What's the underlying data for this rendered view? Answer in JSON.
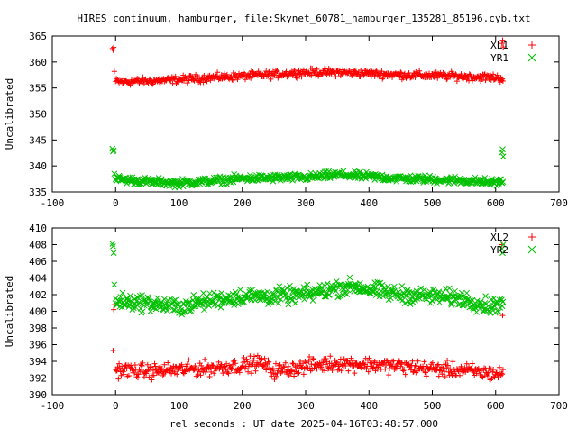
{
  "figure": {
    "title": "HIRES continuum, hamburger, file:Skynet_60781_hamburger_135281_85196.cyb.txt",
    "xlabel": "rel seconds : UT date 2025-04-16T03:48:57.000"
  },
  "colors": {
    "red": "#ff0000",
    "green": "#00c000",
    "frame": "#000000"
  },
  "chart_data": [
    {
      "type": "scatter",
      "panel": "top",
      "ylabel": "Uncalibrated",
      "xlim": [
        -100,
        700
      ],
      "ylim": [
        335,
        365
      ],
      "xticks": [
        -100,
        0,
        100,
        200,
        300,
        400,
        500,
        600,
        700
      ],
      "yticks": [
        335,
        340,
        345,
        350,
        355,
        360,
        365
      ],
      "legend": "top-right",
      "series": [
        {
          "name": "XL1",
          "color": "#ff0000",
          "marker": "plus",
          "outliers": [
            [
              -5,
              362.6
            ],
            [
              -4,
              362.3
            ],
            [
              -3,
              362.8
            ],
            [
              -2,
              358.2
            ],
            [
              610,
              363.6
            ],
            [
              611,
              364.2
            ],
            [
              612,
              362.9
            ]
          ],
          "trend": [
            [
              0,
              356.2
            ],
            [
              50,
              356.3
            ],
            [
              100,
              356.6
            ],
            [
              150,
              357.0
            ],
            [
              200,
              357.3
            ],
            [
              250,
              357.6
            ],
            [
              300,
              358.0
            ],
            [
              350,
              358.0
            ],
            [
              400,
              357.8
            ],
            [
              450,
              357.5
            ],
            [
              500,
              357.4
            ],
            [
              550,
              357.2
            ],
            [
              600,
              357.0
            ],
            [
              612,
              356.8
            ]
          ],
          "spread": 0.9
        },
        {
          "name": "YR1",
          "color": "#00c000",
          "marker": "cross",
          "outliers": [
            [
              -5,
              343.3
            ],
            [
              -4,
              342.8
            ],
            [
              -3,
              343.0
            ],
            [
              -2,
              338.5
            ],
            [
              610,
              342.6
            ],
            [
              611,
              343.2
            ],
            [
              612,
              341.8
            ]
          ],
          "trend": [
            [
              0,
              337.5
            ],
            [
              50,
              337.0
            ],
            [
              100,
              336.7
            ],
            [
              150,
              337.1
            ],
            [
              200,
              337.6
            ],
            [
              250,
              337.7
            ],
            [
              300,
              337.8
            ],
            [
              350,
              338.3
            ],
            [
              400,
              338.0
            ],
            [
              450,
              337.6
            ],
            [
              500,
              337.4
            ],
            [
              550,
              337.2
            ],
            [
              600,
              336.8
            ],
            [
              612,
              337.0
            ]
          ],
          "spread": 0.9
        }
      ]
    },
    {
      "type": "scatter",
      "panel": "bottom",
      "ylabel": "Uncalibrated",
      "xlim": [
        -100,
        700
      ],
      "ylim": [
        390,
        410
      ],
      "xticks": [
        -100,
        0,
        100,
        200,
        300,
        400,
        500,
        600,
        700
      ],
      "yticks": [
        390,
        392,
        394,
        396,
        398,
        400,
        402,
        404,
        406,
        408,
        410
      ],
      "legend": "top-right",
      "series": [
        {
          "name": "XL2",
          "color": "#ff0000",
          "marker": "plus",
          "outliers": [
            [
              -4,
              395.3
            ],
            [
              -3,
              400.2
            ],
            [
              -2,
              400.8
            ],
            [
              611,
              399.5
            ],
            [
              610,
              408.0
            ]
          ],
          "trend": [
            [
              0,
              393.0
            ],
            [
              50,
              392.8
            ],
            [
              100,
              393.0
            ],
            [
              150,
              393.2
            ],
            [
              200,
              393.5
            ],
            [
              230,
              393.9
            ],
            [
              250,
              392.8
            ],
            [
              300,
              393.4
            ],
            [
              350,
              393.8
            ],
            [
              400,
              393.6
            ],
            [
              450,
              393.4
            ],
            [
              500,
              393.1
            ],
            [
              550,
              392.9
            ],
            [
              600,
              392.5
            ],
            [
              612,
              392.5
            ]
          ],
          "spread": 1.1
        },
        {
          "name": "YR2",
          "color": "#00c000",
          "marker": "cross",
          "outliers": [
            [
              -5,
              408.1
            ],
            [
              -4,
              407.8
            ],
            [
              -3,
              407.0
            ],
            [
              -2,
              403.2
            ],
            [
              610,
              407.5
            ],
            [
              611,
              407.0
            ],
            [
              612,
              408.0
            ]
          ],
          "trend": [
            [
              0,
              401.2
            ],
            [
              50,
              401.0
            ],
            [
              100,
              400.5
            ],
            [
              150,
              401.3
            ],
            [
              200,
              401.8
            ],
            [
              250,
              401.8
            ],
            [
              300,
              402.0
            ],
            [
              350,
              402.8
            ],
            [
              380,
              403.0
            ],
            [
              400,
              402.6
            ],
            [
              450,
              402.0
            ],
            [
              500,
              401.8
            ],
            [
              550,
              401.5
            ],
            [
              590,
              400.6
            ],
            [
              612,
              401.0
            ]
          ],
          "spread": 1.2
        }
      ]
    }
  ]
}
